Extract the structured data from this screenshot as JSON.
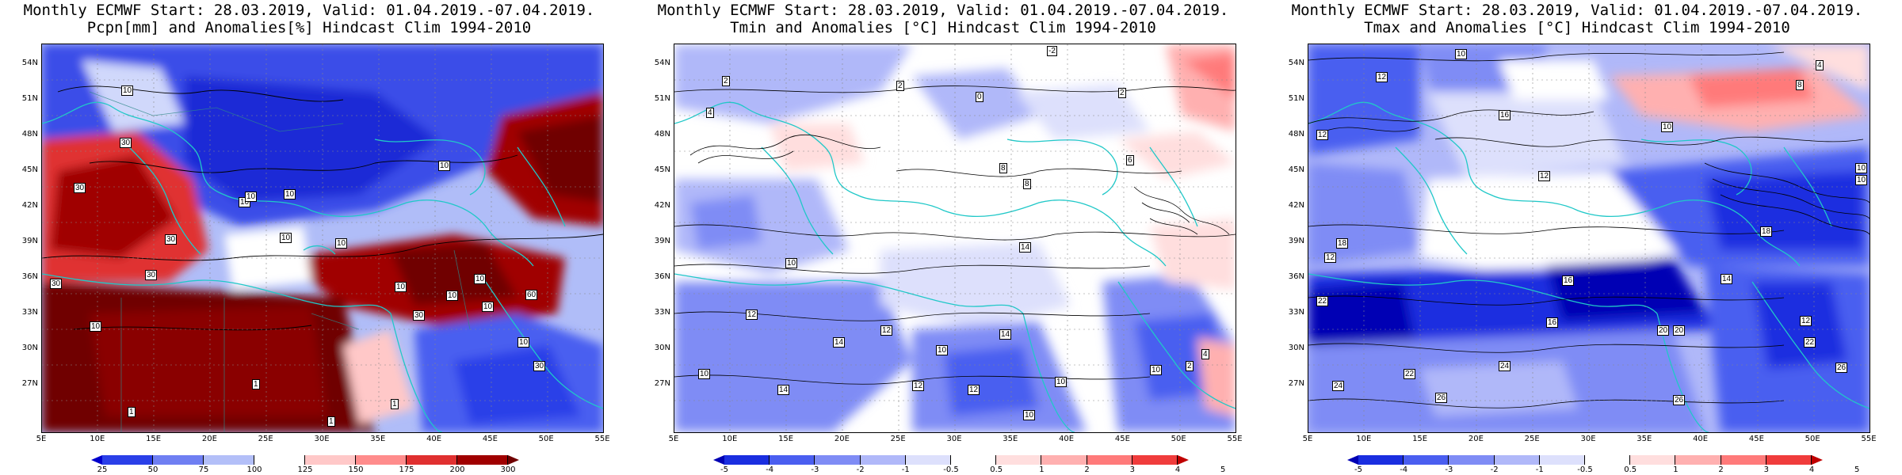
{
  "panels": [
    {
      "title_line1": "Monthly ECMWF Start: 28.03.2019, Valid: 01.04.2019.-07.04.2019.",
      "title_line2": "Pcpn[mm] and Anomalies[%] Hindcast Clim 1994-2010",
      "colorbar_labels": [
        "25",
        "50",
        "75",
        "100",
        "125",
        "150",
        "175",
        "200",
        "300"
      ],
      "colors": [
        "#0000cc",
        "#2a3fe8",
        "#6f7ff2",
        "#b3bff8",
        "#ffffff",
        "#ffc8c8",
        "#ff8c8c",
        "#e03030",
        "#a00000",
        "#700000"
      ],
      "contour_labels": [
        "10",
        "30",
        "10",
        "10",
        "10",
        "30",
        "30",
        "10",
        "10",
        "10",
        "30",
        "10",
        "30",
        "1",
        "1",
        "10",
        "10",
        "30",
        "10",
        "10",
        "30",
        "10",
        "60",
        "1",
        "1",
        "1"
      ]
    },
    {
      "title_line1": "Monthly ECMWF Start: 28.03.2019, Valid: 01.04.2019.-07.04.2019.",
      "title_line2": "Tmin and Anomalies [°C] Hindcast Clim 1994-2010",
      "colorbar_labels": [
        "-5",
        "-4",
        "-3",
        "-2",
        "-1",
        "-0.5",
        "0.5",
        "1",
        "2",
        "3",
        "4",
        "5"
      ],
      "colors": [
        "#0000b4",
        "#1a2ee0",
        "#4a5ef0",
        "#7f8cf5",
        "#b0b8f9",
        "#dde0fc",
        "#ffffff",
        "#ffdede",
        "#ffb0b0",
        "#ff7a7a",
        "#f03c3c",
        "#c00000"
      ],
      "contour_labels": [
        "-2",
        "2",
        "2",
        "2",
        "4",
        "0",
        "8",
        "10",
        "12",
        "14",
        "10",
        "14",
        "12",
        "10",
        "14",
        "12",
        "10",
        "12",
        "10",
        "8",
        "10",
        "14",
        "2",
        "4",
        "6"
      ]
    },
    {
      "title_line1": "Monthly ECMWF Start: 28.03.2019, Valid: 01.04.2019.-07.04.2019.",
      "title_line2": "Tmax and Anomalies [°C] Hindcast Clim 1994-2010",
      "colorbar_labels": [
        "-5",
        "-4",
        "-3",
        "-2",
        "-1",
        "-0.5",
        "0.5",
        "1",
        "2",
        "3",
        "4",
        "5"
      ],
      "colors": [
        "#0000b4",
        "#1a2ee0",
        "#4a5ef0",
        "#7f8cf5",
        "#b0b8f9",
        "#dde0fc",
        "#ffffff",
        "#ffdede",
        "#ffb0b0",
        "#ff7a7a",
        "#f03c3c",
        "#c00000"
      ],
      "contour_labels": [
        "10",
        "12",
        "8",
        "4",
        "12",
        "16",
        "10",
        "12",
        "14",
        "16",
        "18",
        "20",
        "22",
        "24",
        "26",
        "18",
        "12",
        "10",
        "22",
        "24",
        "26",
        "22",
        "26",
        "20",
        "12",
        "10",
        "16"
      ]
    }
  ],
  "lat_labels": [
    "54N",
    "51N",
    "48N",
    "45N",
    "42N",
    "39N",
    "36N",
    "33N",
    "30N",
    "27N"
  ],
  "lon_labels": [
    "5E",
    "10E",
    "15E",
    "20E",
    "25E",
    "30E",
    "35E",
    "40E",
    "45E",
    "50E",
    "55E"
  ],
  "icons": {
    "map": "europe-mediterranean-map"
  }
}
